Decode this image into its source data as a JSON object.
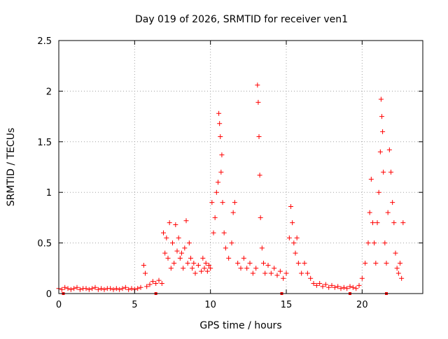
{
  "chart_data": {
    "type": "scatter",
    "title": "Day 019 of 2026, SRMTID for receiver ven1",
    "xlabel": "GPS time / hours",
    "ylabel": "SRMTID / TECUs",
    "xlim": [
      0,
      24
    ],
    "ylim": [
      0,
      2.5
    ],
    "grid": true,
    "x_ticks": [
      0,
      5,
      10,
      15,
      20
    ],
    "y_ticks": [
      0,
      0.5,
      1,
      1.5,
      2,
      2.5
    ],
    "x_tick_labels": [
      "0",
      "5",
      "10",
      "15",
      "20"
    ],
    "y_tick_labels": [
      "0",
      "0.5",
      "1",
      "1.5",
      "2",
      "2.5"
    ],
    "marker": "+",
    "series": [
      {
        "name": "SRMTID",
        "color": "#ff0000",
        "points": [
          [
            0.0,
            0.05
          ],
          [
            0.2,
            0.04
          ],
          [
            0.4,
            0.06
          ],
          [
            0.6,
            0.05
          ],
          [
            0.8,
            0.04
          ],
          [
            1.0,
            0.05
          ],
          [
            1.2,
            0.06
          ],
          [
            1.4,
            0.04
          ],
          [
            1.6,
            0.05
          ],
          [
            1.8,
            0.05
          ],
          [
            2.0,
            0.04
          ],
          [
            2.2,
            0.05
          ],
          [
            2.4,
            0.06
          ],
          [
            2.6,
            0.04
          ],
          [
            2.8,
            0.05
          ],
          [
            3.0,
            0.04
          ],
          [
            3.2,
            0.05
          ],
          [
            3.4,
            0.05
          ],
          [
            3.6,
            0.04
          ],
          [
            3.8,
            0.05
          ],
          [
            4.0,
            0.04
          ],
          [
            4.2,
            0.05
          ],
          [
            4.4,
            0.06
          ],
          [
            4.6,
            0.04
          ],
          [
            4.8,
            0.05
          ],
          [
            5.0,
            0.04
          ],
          [
            5.2,
            0.05
          ],
          [
            5.4,
            0.06
          ],
          [
            5.6,
            0.28
          ],
          [
            5.7,
            0.2
          ],
          [
            5.8,
            0.07
          ],
          [
            6.0,
            0.09
          ],
          [
            6.2,
            0.12
          ],
          [
            6.4,
            0.1
          ],
          [
            6.6,
            0.13
          ],
          [
            6.8,
            0.1
          ],
          [
            6.9,
            0.6
          ],
          [
            7.0,
            0.4
          ],
          [
            7.1,
            0.55
          ],
          [
            7.2,
            0.35
          ],
          [
            7.3,
            0.7
          ],
          [
            7.4,
            0.25
          ],
          [
            7.5,
            0.5
          ],
          [
            7.6,
            0.3
          ],
          [
            7.7,
            0.68
          ],
          [
            7.8,
            0.42
          ],
          [
            7.9,
            0.55
          ],
          [
            8.0,
            0.35
          ],
          [
            8.1,
            0.4
          ],
          [
            8.2,
            0.25
          ],
          [
            8.3,
            0.45
          ],
          [
            8.4,
            0.72
          ],
          [
            8.5,
            0.3
          ],
          [
            8.6,
            0.5
          ],
          [
            8.7,
            0.35
          ],
          [
            8.8,
            0.25
          ],
          [
            8.9,
            0.3
          ],
          [
            9.0,
            0.2
          ],
          [
            9.2,
            0.28
          ],
          [
            9.4,
            0.22
          ],
          [
            9.5,
            0.35
          ],
          [
            9.6,
            0.25
          ],
          [
            9.7,
            0.3
          ],
          [
            9.8,
            0.22
          ],
          [
            9.9,
            0.28
          ],
          [
            10.0,
            0.25
          ],
          [
            10.1,
            0.9
          ],
          [
            10.2,
            0.6
          ],
          [
            10.3,
            0.75
          ],
          [
            10.4,
            1.0
          ],
          [
            10.5,
            1.1
          ],
          [
            10.55,
            1.78
          ],
          [
            10.6,
            1.68
          ],
          [
            10.65,
            1.55
          ],
          [
            10.7,
            1.2
          ],
          [
            10.75,
            1.37
          ],
          [
            10.8,
            0.9
          ],
          [
            10.9,
            0.6
          ],
          [
            11.0,
            0.45
          ],
          [
            11.2,
            0.35
          ],
          [
            11.4,
            0.5
          ],
          [
            11.5,
            0.8
          ],
          [
            11.6,
            0.9
          ],
          [
            11.8,
            0.3
          ],
          [
            12.0,
            0.25
          ],
          [
            12.2,
            0.35
          ],
          [
            12.4,
            0.25
          ],
          [
            12.6,
            0.3
          ],
          [
            12.8,
            0.2
          ],
          [
            13.0,
            0.25
          ],
          [
            13.1,
            2.06
          ],
          [
            13.15,
            1.89
          ],
          [
            13.2,
            1.55
          ],
          [
            13.25,
            1.17
          ],
          [
            13.3,
            0.75
          ],
          [
            13.4,
            0.45
          ],
          [
            13.5,
            0.3
          ],
          [
            13.6,
            0.2
          ],
          [
            13.8,
            0.28
          ],
          [
            14.0,
            0.2
          ],
          [
            14.2,
            0.25
          ],
          [
            14.4,
            0.18
          ],
          [
            14.6,
            0.22
          ],
          [
            14.8,
            0.15
          ],
          [
            15.0,
            0.2
          ],
          [
            15.2,
            0.55
          ],
          [
            15.3,
            0.86
          ],
          [
            15.4,
            0.7
          ],
          [
            15.5,
            0.5
          ],
          [
            15.6,
            0.4
          ],
          [
            15.7,
            0.55
          ],
          [
            15.8,
            0.3
          ],
          [
            16.0,
            0.2
          ],
          [
            16.2,
            0.3
          ],
          [
            16.4,
            0.2
          ],
          [
            16.6,
            0.15
          ],
          [
            16.8,
            0.1
          ],
          [
            17.0,
            0.08
          ],
          [
            17.2,
            0.1
          ],
          [
            17.4,
            0.07
          ],
          [
            17.6,
            0.09
          ],
          [
            17.8,
            0.06
          ],
          [
            18.0,
            0.08
          ],
          [
            18.2,
            0.06
          ],
          [
            18.4,
            0.07
          ],
          [
            18.6,
            0.05
          ],
          [
            18.8,
            0.06
          ],
          [
            19.0,
            0.05
          ],
          [
            19.2,
            0.07
          ],
          [
            19.4,
            0.06
          ],
          [
            19.6,
            0.05
          ],
          [
            19.8,
            0.08
          ],
          [
            20.0,
            0.15
          ],
          [
            20.2,
            0.3
          ],
          [
            20.4,
            0.5
          ],
          [
            20.5,
            0.8
          ],
          [
            20.6,
            1.13
          ],
          [
            20.7,
            0.7
          ],
          [
            20.8,
            0.5
          ],
          [
            20.9,
            0.3
          ],
          [
            21.0,
            0.7
          ],
          [
            21.1,
            1.0
          ],
          [
            21.2,
            1.4
          ],
          [
            21.25,
            1.92
          ],
          [
            21.3,
            1.75
          ],
          [
            21.35,
            1.6
          ],
          [
            21.4,
            1.2
          ],
          [
            21.5,
            0.5
          ],
          [
            21.6,
            0.3
          ],
          [
            21.7,
            0.8
          ],
          [
            21.8,
            1.42
          ],
          [
            21.9,
            1.2
          ],
          [
            22.0,
            0.9
          ],
          [
            22.1,
            0.7
          ],
          [
            22.2,
            0.4
          ],
          [
            22.3,
            0.25
          ],
          [
            22.4,
            0.2
          ],
          [
            22.5,
            0.3
          ],
          [
            22.6,
            0.15
          ],
          [
            22.7,
            0.7
          ]
        ]
      }
    ],
    "x_axis_marks": [
      0.3,
      6.4,
      14.7,
      19.2,
      21.6
    ]
  }
}
